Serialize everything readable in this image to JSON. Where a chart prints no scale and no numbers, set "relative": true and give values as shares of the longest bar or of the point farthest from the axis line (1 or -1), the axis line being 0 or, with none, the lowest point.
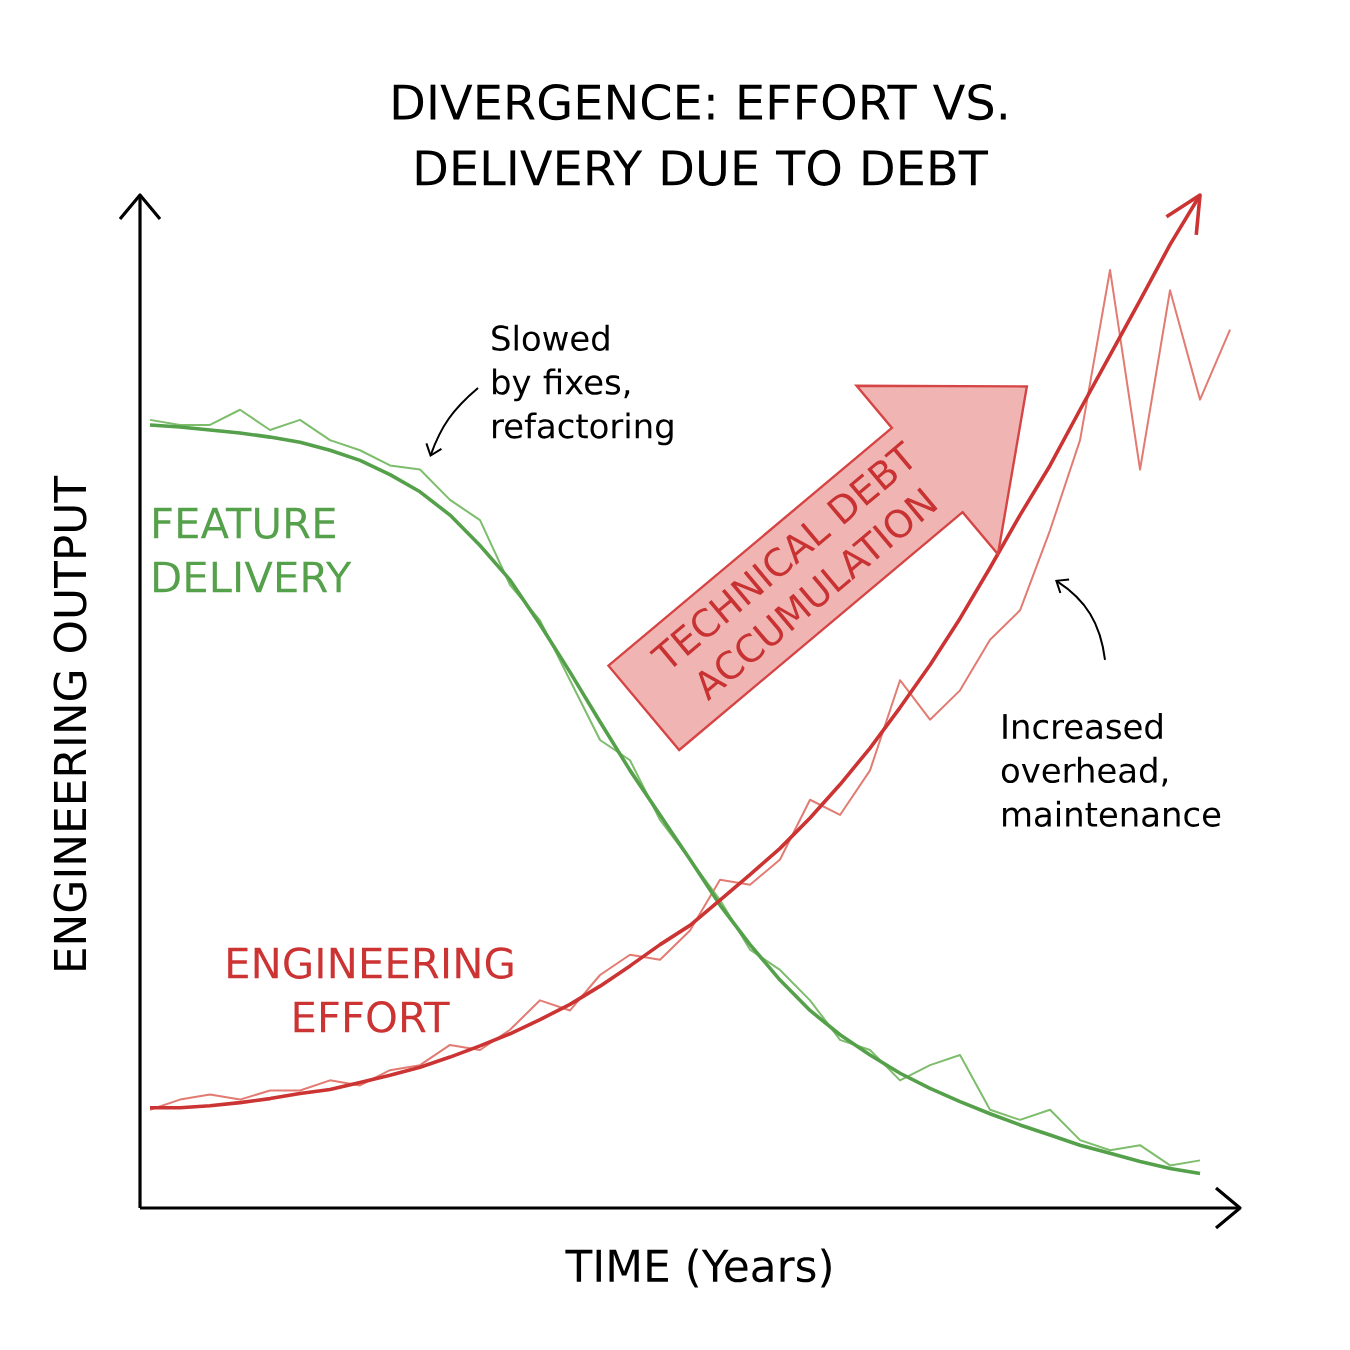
{
  "chart_data": {
    "type": "line",
    "relative": true,
    "title": "DIVERGENCE: EFFORT VS. DELIVERY DUE TO DEBT",
    "xlabel": "TIME (Years)",
    "ylabel": "ENGINEERING OUTPUT",
    "categories": [
      null,
      null,
      null,
      null,
      null,
      null,
      null,
      null,
      null,
      null,
      null,
      null,
      null,
      null,
      null,
      null,
      null,
      null,
      null,
      null,
      null,
      null,
      null,
      null,
      null,
      null,
      null,
      null,
      null,
      null,
      null,
      null,
      null,
      null,
      null,
      null,
      null
    ],
    "series": [
      {
        "color": "#7dbd6c",
        "values": [
          0.778,
          0.773,
          0.773,
          0.788,
          0.768,
          0.778,
          0.758,
          0.748,
          0.733,
          0.729,
          0.699,
          0.679,
          0.615,
          0.58,
          0.521,
          0.462,
          0.442,
          0.383,
          0.344,
          0.304,
          0.255,
          0.235,
          0.205,
          0.166,
          0.156,
          0.126,
          0.141,
          0.151,
          0.097,
          0.087,
          0.097,
          0.067,
          0.057,
          0.062,
          0.042,
          0.047,
          null
        ]
      },
      {
        "color": "#e27b72",
        "values": [
          0.097,
          0.107,
          0.112,
          0.107,
          0.116,
          0.116,
          0.126,
          0.121,
          0.136,
          0.141,
          0.161,
          0.156,
          0.176,
          0.205,
          0.195,
          0.23,
          0.25,
          0.245,
          0.274,
          0.324,
          0.319,
          0.344,
          0.403,
          0.388,
          0.432,
          0.521,
          0.482,
          0.511,
          0.561,
          0.59,
          0.669,
          0.758,
          0.926,
          0.729,
          0.906,
          0.798,
          0.867
        ]
      },
      {
        "name": "FEATURE DELIVERY",
        "color": "#55a04a",
        "values": [
          0.773,
          0.771,
          0.768,
          0.765,
          0.761,
          0.756,
          0.748,
          0.738,
          0.724,
          0.707,
          0.684,
          0.654,
          0.62,
          0.576,
          0.529,
          0.48,
          0.432,
          0.388,
          0.344,
          0.299,
          0.26,
          0.225,
          0.195,
          0.171,
          0.151,
          0.133,
          0.118,
          0.105,
          0.093,
          0.082,
          0.072,
          0.062,
          0.054,
          0.046,
          0.039,
          0.034,
          null
        ]
      },
      {
        "name": "ENGINEERING EFFORT",
        "color": "#cc3333",
        "values": [
          0.099,
          0.099,
          0.101,
          0.104,
          0.108,
          0.113,
          0.117,
          0.124,
          0.131,
          0.139,
          0.149,
          0.16,
          0.172,
          0.186,
          0.201,
          0.219,
          0.239,
          0.26,
          0.279,
          0.304,
          0.329,
          0.355,
          0.385,
          0.418,
          0.454,
          0.494,
          0.536,
          0.582,
          0.632,
          0.684,
          0.733,
          0.788,
          0.842,
          0.896,
          0.951,
          1.0,
          null
        ]
      }
    ],
    "annotations": [
      "Slowed by fixes, refactoring",
      "TECHNICAL DEBT ACCUMULATION",
      "Increased overhead, maintenance"
    ]
  }
}
